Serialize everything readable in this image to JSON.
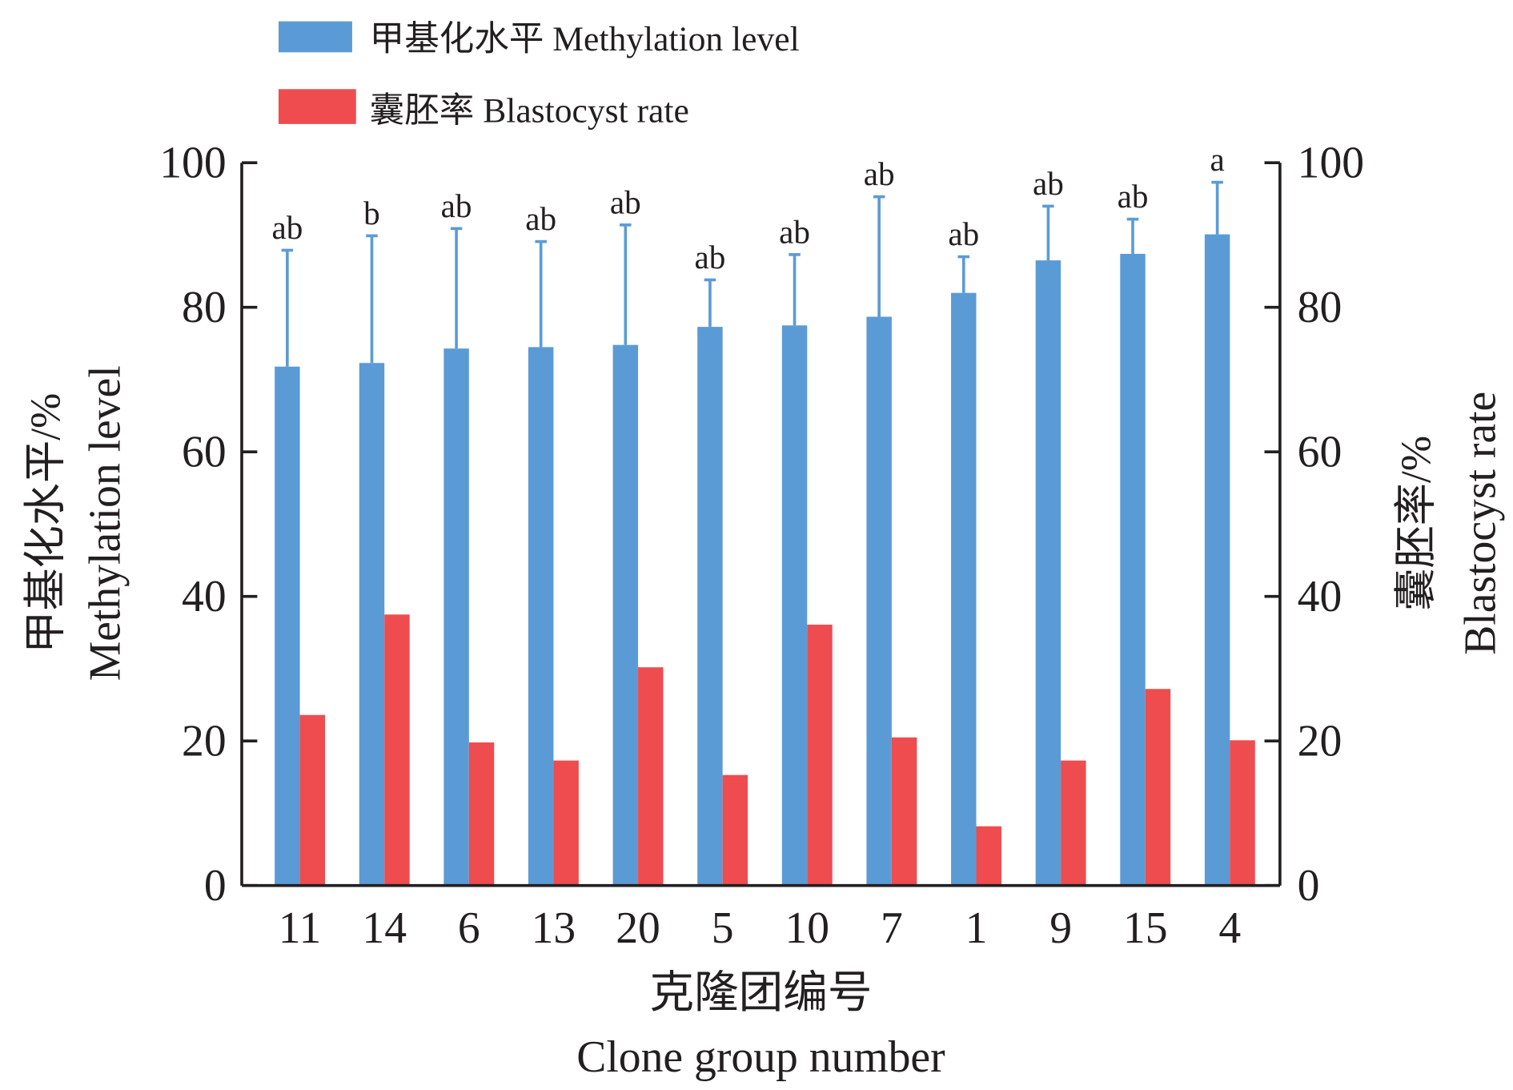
{
  "chart_data": {
    "type": "bar",
    "categories": [
      "11",
      "14",
      "6",
      "13",
      "20",
      "5",
      "10",
      "7",
      "1",
      "9",
      "15",
      "4"
    ],
    "series": [
      {
        "name": "甲基化水平 Methylation level",
        "axis": "left",
        "color": "#5b9bd5",
        "values": [
          71.8,
          72.3,
          74.3,
          74.5,
          74.8,
          77.3,
          77.5,
          78.7,
          82.0,
          86.5,
          87.4,
          90.1
        ],
        "error_upper": [
          87.9,
          89.9,
          90.9,
          89.1,
          91.4,
          83.8,
          87.3,
          95.3,
          87.0,
          94.0,
          92.2,
          97.3
        ],
        "significance": [
          "ab",
          "b",
          "ab",
          "ab",
          "ab",
          "ab",
          "ab",
          "ab",
          "ab",
          "ab",
          "ab",
          "a"
        ]
      },
      {
        "name": "囊胚率 Blastocyst rate",
        "axis": "right",
        "color": "#ee4c4f",
        "values": [
          23.6,
          37.5,
          19.8,
          17.3,
          30.2,
          15.3,
          36.1,
          20.5,
          8.2,
          17.3,
          27.2,
          20.1
        ]
      }
    ],
    "legend": [
      "甲基化水平 Methylation level",
      "囊胚率 Blastocyst rate"
    ],
    "legend_position": "top-left",
    "xlabel": [
      "克隆团编号",
      "Clone group number"
    ],
    "ylabel_left": [
      "甲基化水平/%",
      "Methylation level"
    ],
    "ylabel_right": [
      "囊胚率/%",
      "Blastocyst rate"
    ],
    "ylim": [
      0,
      100
    ],
    "yticks": [
      "0",
      "20",
      "40",
      "60",
      "80",
      "100"
    ],
    "grid": false
  }
}
